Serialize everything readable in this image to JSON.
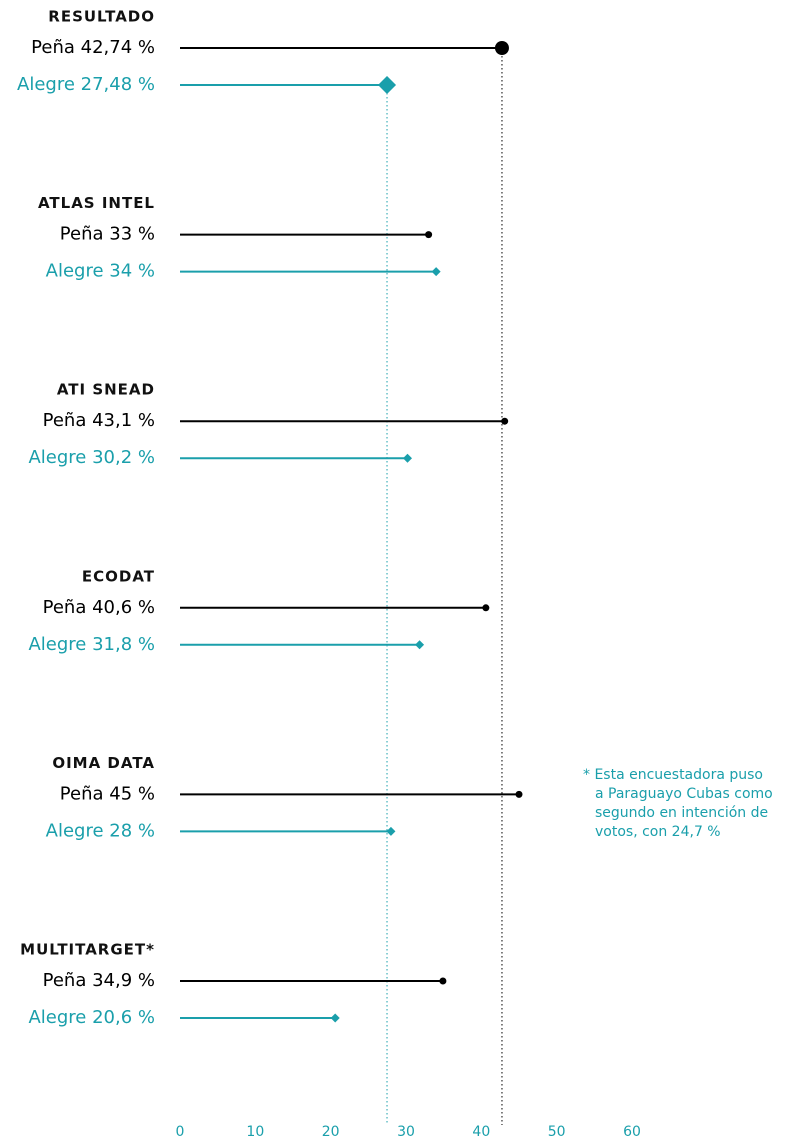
{
  "chart_data": {
    "type": "dot",
    "categories": [
      "RESULTADO",
      "ATLAS INTEL",
      "ATI SNEAD",
      "ECODAT",
      "OIMA DATA",
      "MULTITARGET*"
    ],
    "series": [
      {
        "name": "Peña",
        "color": "#000000",
        "values": [
          42.74,
          33,
          43.1,
          40.6,
          45,
          34.9
        ],
        "value_labels": [
          "42,74 %",
          "33 %",
          "43,1 %",
          "40,6 %",
          "45 %",
          "34,9 %"
        ]
      },
      {
        "name": "Alegre",
        "color": "#1a9fab",
        "values": [
          27.48,
          34,
          30.2,
          31.8,
          28,
          20.6
        ],
        "value_labels": [
          "27,48 %",
          "34 %",
          "30,2 %",
          "31,8 %",
          "28 %",
          "20,6 %"
        ]
      }
    ],
    "xlim": [
      0,
      60
    ],
    "xticks": [
      0,
      10,
      20,
      30,
      40,
      50,
      60
    ],
    "annotation": [
      "* Esta encuestadora puso",
      "a Paraguayo Cubas como",
      "segundo en intención de",
      "votos, con 24,7 %"
    ]
  }
}
